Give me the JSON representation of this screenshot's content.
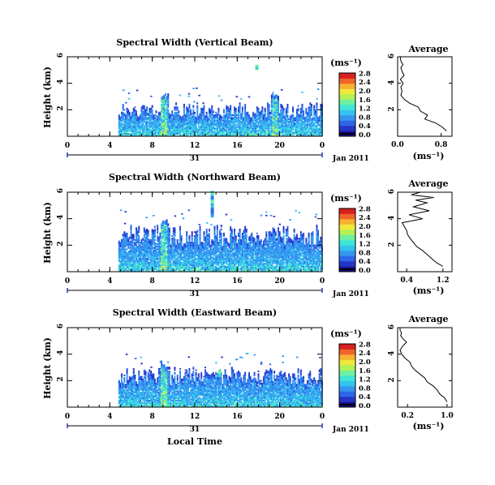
{
  "figure": {
    "xlabel": "Local Time",
    "date_label": "Jan 2011",
    "day_label": "31",
    "colorbar_unit": "(ms⁻¹)",
    "profile_title": "Average",
    "profile_unit": "(ms⁻¹)",
    "colormap": [
      "#1a0f8f",
      "#2535c8",
      "#2f66e8",
      "#3596f0",
      "#36c2f0",
      "#3ee6d6",
      "#6ef0a0",
      "#b4f056",
      "#f0e83a",
      "#f6b130",
      "#f0642a",
      "#d8201e"
    ]
  },
  "panels": [
    {
      "title": "Spectral Width (Vertical Beam)",
      "ylabel": "Height (km)",
      "colorbar_ticks": [
        "0.0",
        "0.4",
        "0.8",
        "1.2",
        "1.6",
        "2.0",
        "2.4",
        "2.8"
      ],
      "profile_xticks": [
        "0.0",
        "0.8"
      ]
    },
    {
      "title": "Spectral Width (Northward Beam)",
      "ylabel": "Height (km)",
      "colorbar_ticks": [
        "0.0",
        "0.4",
        "0.8",
        "1.2",
        "1.6",
        "2.0",
        "2.4",
        "2.8"
      ],
      "profile_xticks": [
        "0.4",
        "1.2"
      ]
    },
    {
      "title": "Spectral Width (Eastward Beam)",
      "ylabel": "Height (km)",
      "colorbar_ticks": [
        "0.0",
        "0.4",
        "0.8",
        "1.2",
        "1.6",
        "2.0",
        "2.4",
        "2.8"
      ],
      "profile_xticks": [
        "0.2",
        "1.0"
      ]
    }
  ],
  "chart_data": [
    {
      "type": "heatmap",
      "title": "Spectral Width (Vertical Beam)",
      "xlabel": "Local Time",
      "ylabel": "Height (km)",
      "x_ticks": [
        "0",
        "4",
        "8",
        "12",
        "16",
        "20",
        "0"
      ],
      "xlim": [
        0,
        24
      ],
      "y_ticks": [
        "2",
        "4",
        "6"
      ],
      "ylim": [
        0,
        6
      ],
      "colorbar": {
        "label": "(ms⁻¹)",
        "range": [
          0,
          2.8
        ],
        "ticks": [
          "0.0",
          "0.4",
          "0.8",
          "1.2",
          "1.6",
          "2.0",
          "2.4",
          "2.8"
        ]
      },
      "data_extent": {
        "time": [
          4.8,
          24
        ],
        "height_max_typical": 2.5
      },
      "features": [
        {
          "time": 9.1,
          "height": [
            0,
            3.3
          ],
          "note": "elevated widths"
        },
        {
          "time": 17.7,
          "height": [
            5.0,
            5.3
          ],
          "note": "isolated echo"
        },
        {
          "time": 19.5,
          "height": [
            0,
            3.5
          ],
          "note": "deeper layer"
        }
      ]
    },
    {
      "type": "heatmap",
      "title": "Spectral Width (Northward Beam)",
      "xlabel": "Local Time",
      "ylabel": "Height (km)",
      "x_ticks": [
        "0",
        "4",
        "8",
        "12",
        "16",
        "20",
        "0"
      ],
      "xlim": [
        0,
        24
      ],
      "y_ticks": [
        "2",
        "4",
        "6"
      ],
      "ylim": [
        0,
        6
      ],
      "colorbar": {
        "label": "(ms⁻¹)",
        "range": [
          0,
          2.8
        ],
        "ticks": [
          "0.0",
          "0.4",
          "0.8",
          "1.2",
          "1.6",
          "2.0",
          "2.4",
          "2.8"
        ]
      },
      "data_extent": {
        "time": [
          4.8,
          24
        ],
        "height_max_typical": 3.5
      },
      "features": [
        {
          "time": 13.5,
          "height": [
            4.1,
            6.0
          ],
          "note": "vertical streak"
        },
        {
          "time": 9.1,
          "height": [
            0,
            3.9
          ],
          "note": "elevated widths"
        }
      ]
    },
    {
      "type": "heatmap",
      "title": "Spectral Width (Eastward Beam)",
      "xlabel": "Local Time",
      "ylabel": "Height (km)",
      "x_ticks": [
        "0",
        "4",
        "8",
        "12",
        "16",
        "20",
        "0"
      ],
      "xlim": [
        0,
        24
      ],
      "y_ticks": [
        "2",
        "4",
        "6"
      ],
      "ylim": [
        0,
        6
      ],
      "colorbar": {
        "label": "(ms⁻¹)",
        "range": [
          0,
          2.8
        ],
        "ticks": [
          "0.0",
          "0.4",
          "0.8",
          "1.2",
          "1.6",
          "2.0",
          "2.4",
          "2.8"
        ]
      },
      "data_extent": {
        "time": [
          4.8,
          24
        ],
        "height_max_typical": 3.0
      },
      "features": [
        {
          "time": 9.1,
          "height": [
            0,
            3.5
          ],
          "note": "elevated widths"
        },
        {
          "time": 14.2,
          "height": [
            2.2,
            2.8
          ],
          "note": "high values"
        }
      ]
    },
    {
      "type": "line",
      "title": "Average",
      "xlabel": "(ms⁻¹)",
      "xlim": [
        0.0,
        1.0
      ],
      "x_ticks": [
        "0.0",
        "0.8"
      ],
      "ylim": [
        0,
        6
      ],
      "y_ticks": [
        "2",
        "4",
        "6"
      ],
      "x": [
        0.9,
        0.82,
        0.7,
        0.5,
        0.55,
        0.42,
        0.38,
        0.22,
        0.12,
        0.06,
        0.08,
        0.06,
        0.1,
        0.05,
        0.12,
        0.08,
        0.06,
        0.1,
        0.07,
        0.05,
        0.05
      ],
      "y": [
        0.4,
        0.7,
        1.0,
        1.3,
        1.6,
        1.9,
        2.2,
        2.5,
        2.8,
        3.1,
        3.4,
        3.7,
        4.0,
        4.3,
        4.6,
        4.9,
        5.2,
        5.4,
        5.6,
        5.8,
        6.0
      ]
    },
    {
      "type": "line",
      "title": "Average",
      "xlabel": "(ms⁻¹)",
      "xlim": [
        0.2,
        1.4
      ],
      "x_ticks": [
        "0.4",
        "1.2"
      ],
      "ylim": [
        0,
        6
      ],
      "y_ticks": [
        "2",
        "4",
        "6"
      ],
      "x": [
        1.2,
        1.05,
        0.95,
        0.85,
        0.75,
        0.62,
        0.55,
        0.48,
        0.42,
        0.4,
        0.35,
        0.3,
        0.75,
        0.45,
        0.9,
        0.55,
        0.85,
        0.6,
        1.0,
        0.5,
        0.7
      ],
      "y": [
        0.4,
        0.7,
        1.0,
        1.3,
        1.6,
        1.9,
        2.2,
        2.5,
        2.8,
        3.1,
        3.4,
        3.7,
        4.0,
        4.3,
        4.6,
        4.9,
        5.2,
        5.4,
        5.6,
        5.8,
        6.0
      ]
    },
    {
      "type": "line",
      "title": "Average",
      "xlabel": "(ms⁻¹)",
      "xlim": [
        0.0,
        1.1
      ],
      "x_ticks": [
        "0.2",
        "1.0"
      ],
      "ylim": [
        0,
        6
      ],
      "y_ticks": [
        "2",
        "4",
        "6"
      ],
      "x": [
        1.0,
        0.95,
        0.85,
        0.8,
        0.72,
        0.6,
        0.55,
        0.45,
        0.35,
        0.28,
        0.25,
        0.15,
        0.08,
        0.05,
        0.1,
        0.18,
        0.1,
        0.06,
        0.08,
        0.05,
        0.05
      ],
      "y": [
        0.4,
        0.7,
        1.0,
        1.3,
        1.6,
        1.9,
        2.2,
        2.5,
        2.8,
        3.1,
        3.4,
        3.7,
        4.0,
        4.3,
        4.6,
        4.9,
        5.2,
        5.4,
        5.6,
        5.8,
        6.0
      ]
    }
  ]
}
